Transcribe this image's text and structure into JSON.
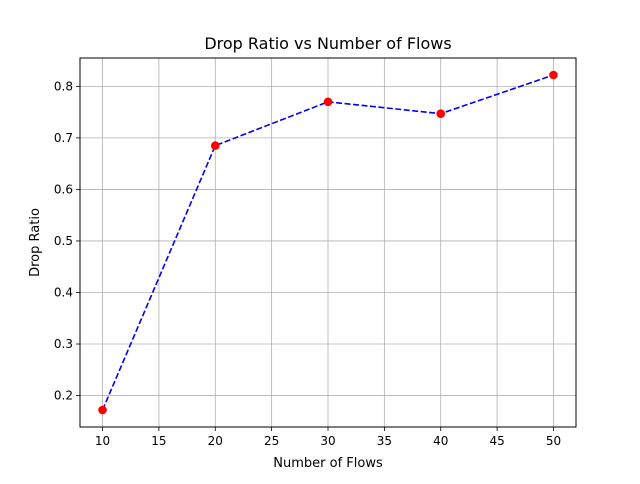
{
  "chart_data": {
    "type": "line",
    "title": "Drop Ratio vs Number of Flows",
    "xlabel": "Number of Flows",
    "ylabel": "Drop Ratio",
    "x": [
      10,
      20,
      30,
      40,
      50
    ],
    "series": [
      {
        "values": [
          0.172,
          0.685,
          0.77,
          0.747,
          0.822
        ],
        "line_color": "#0000ff",
        "line_style": "dashed",
        "marker_color": "#ff0000",
        "marker": "circle"
      }
    ],
    "xlim": [
      8,
      52
    ],
    "ylim": [
      0.139,
      0.855
    ],
    "xticks": [
      10,
      15,
      20,
      25,
      30,
      35,
      40,
      45,
      50
    ],
    "yticks": [
      0.2,
      0.3,
      0.4,
      0.5,
      0.6,
      0.7,
      0.8
    ],
    "ytick_labels": [
      "0.2",
      "0.3",
      "0.4",
      "0.5",
      "0.6",
      "0.7",
      "0.8"
    ],
    "grid": true,
    "grid_color": "#b0b0b0"
  }
}
